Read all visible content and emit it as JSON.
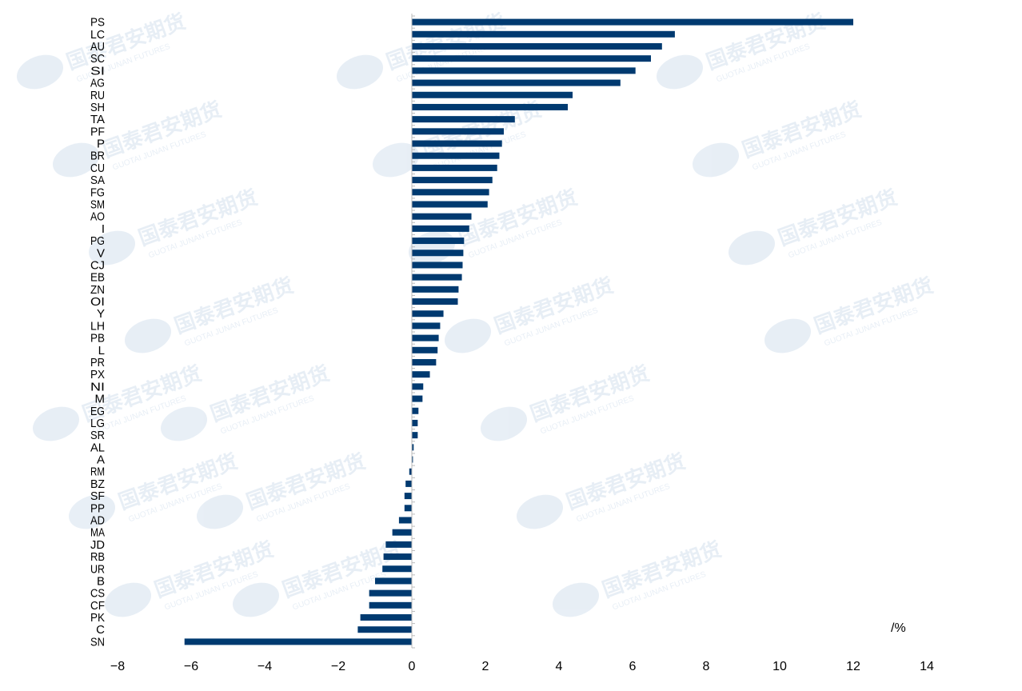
{
  "chart_data": {
    "type": "bar",
    "orientation": "horizontal",
    "unit_label": "/%",
    "categories": [
      "PS",
      "LC",
      "AU",
      "SC",
      "SI",
      "AG",
      "RU",
      "SH",
      "TA",
      "PF",
      "P",
      "BR",
      "CU",
      "SA",
      "FG",
      "SM",
      "AO",
      "I",
      "PG",
      "V",
      "CJ",
      "EB",
      "ZN",
      "OI",
      "Y",
      "LH",
      "PB",
      "L",
      "PR",
      "PX",
      "NI",
      "M",
      "EG",
      "LG",
      "SR",
      "AL",
      "A",
      "RM",
      "BZ",
      "SF",
      "PP",
      "AD",
      "MA",
      "JD",
      "RB",
      "UR",
      "B",
      "CS",
      "CF",
      "PK",
      "C",
      "SN"
    ],
    "values": [
      12.0,
      7.15,
      6.8,
      6.5,
      6.08,
      5.67,
      4.37,
      4.24,
      2.8,
      2.5,
      2.45,
      2.38,
      2.32,
      2.19,
      2.1,
      2.06,
      1.62,
      1.56,
      1.42,
      1.4,
      1.38,
      1.36,
      1.27,
      1.25,
      0.86,
      0.77,
      0.73,
      0.7,
      0.66,
      0.49,
      0.31,
      0.29,
      0.18,
      0.16,
      0.16,
      0.05,
      0.03,
      -0.07,
      -0.17,
      -0.2,
      -0.2,
      -0.35,
      -0.53,
      -0.71,
      -0.77,
      -0.8,
      -1.0,
      -1.16,
      -1.16,
      -1.4,
      -1.47,
      -6.18
    ],
    "xlim": [
      -8,
      14
    ],
    "xticks": [
      "-8",
      "-6",
      "-4",
      "-2",
      "0",
      "2",
      "4",
      "6",
      "8",
      "10",
      "12",
      "14"
    ],
    "grid": false,
    "bar_color": "#003a70",
    "watermark": "国泰君安期货 GUOTAI JUNAN FUTURES"
  }
}
